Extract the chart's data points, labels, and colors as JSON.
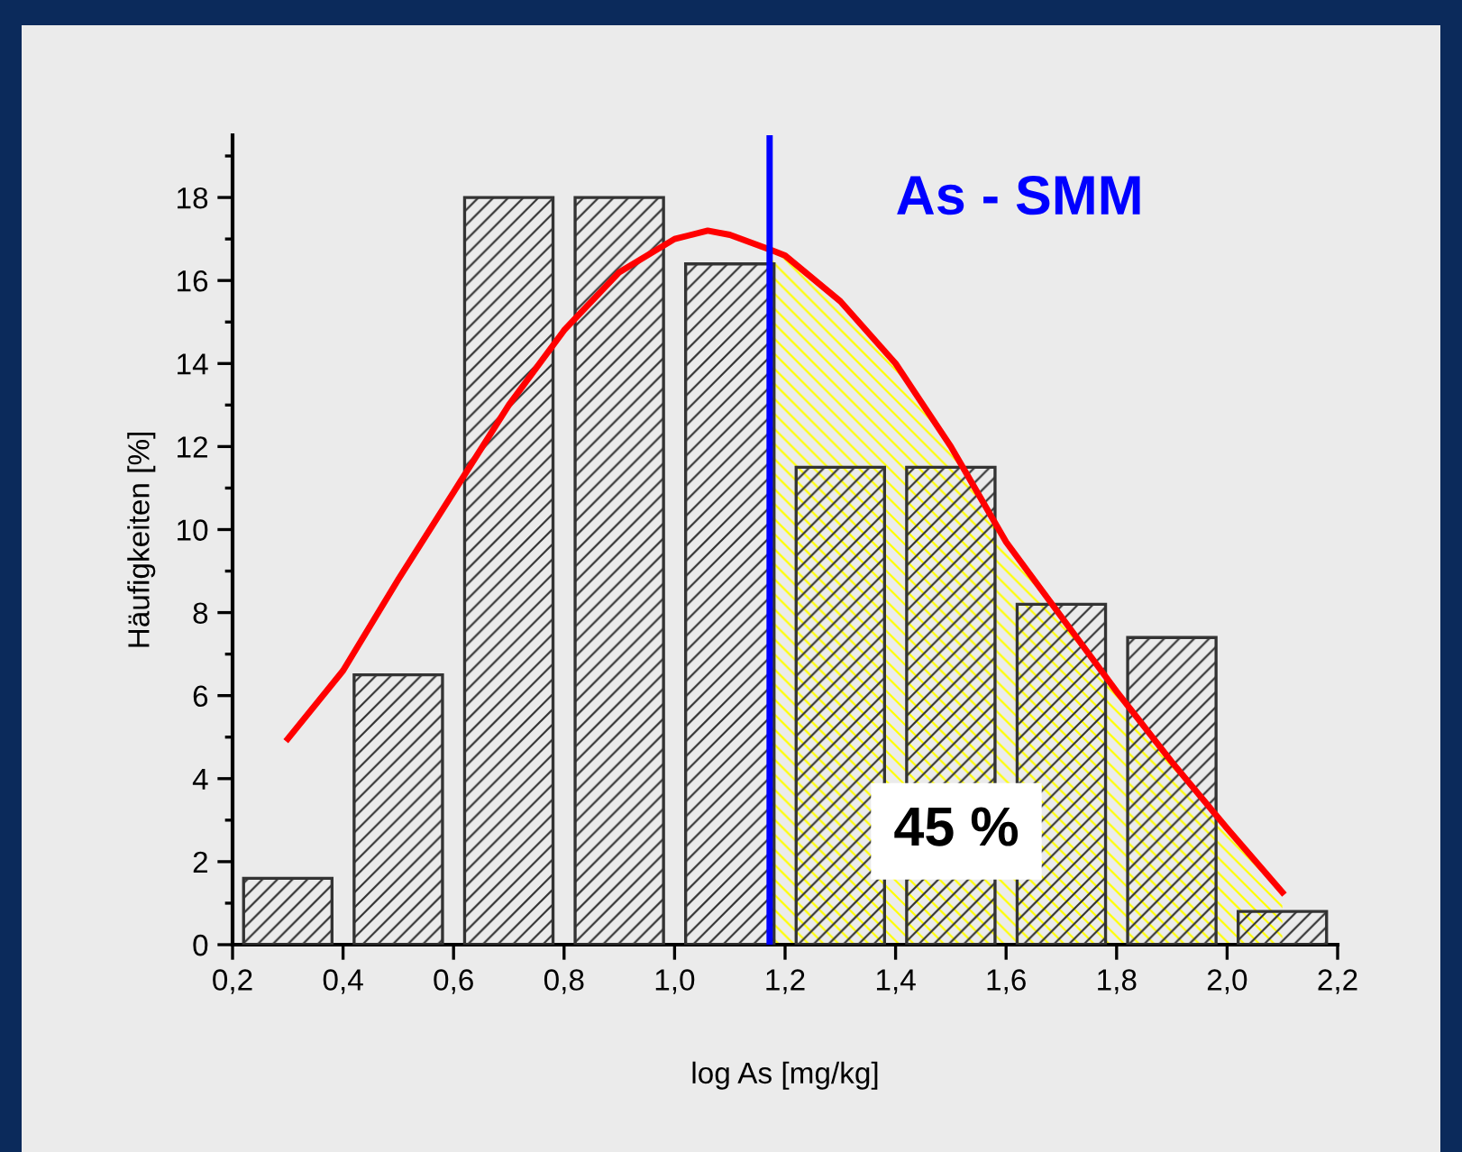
{
  "chart_data": {
    "type": "bar",
    "xlabel": "log As [mg/kg]",
    "ylabel": "Häufigkeiten [%]",
    "xlim": [
      0.2,
      2.2
    ],
    "ylim": [
      0,
      19.5
    ],
    "xticks": [
      {
        "value": 0.2,
        "label": "0,2"
      },
      {
        "value": 0.4,
        "label": "0,4"
      },
      {
        "value": 0.6,
        "label": "0,6"
      },
      {
        "value": 0.8,
        "label": "0,8"
      },
      {
        "value": 1.0,
        "label": "1,0"
      },
      {
        "value": 1.2,
        "label": "1,2"
      },
      {
        "value": 1.4,
        "label": "1,4"
      },
      {
        "value": 1.6,
        "label": "1,6"
      },
      {
        "value": 1.8,
        "label": "1,8"
      },
      {
        "value": 2.0,
        "label": "2,0"
      },
      {
        "value": 2.2,
        "label": "2,2"
      }
    ],
    "yticks": [
      0,
      2,
      4,
      6,
      8,
      10,
      12,
      14,
      16,
      18
    ],
    "series": [
      {
        "type": "area",
        "color": "#ffff00",
        "x": [
          1.172,
          1.2,
          1.3,
          1.4,
          1.5,
          1.6,
          1.8,
          2.0,
          2.1
        ],
        "values": [
          16.75,
          16.6,
          15.5,
          14.0,
          12.0,
          9.7,
          6.1,
          2.8,
          1.26
        ]
      },
      {
        "color": "#333333",
        "x": [
          0.3,
          0.5,
          0.7,
          0.9,
          1.1,
          1.3,
          1.5,
          1.7,
          1.9,
          2.1
        ],
        "values": [
          1.6,
          6.5,
          18,
          18,
          16.4,
          11.5,
          11.5,
          8.2,
          7.4,
          0.8
        ]
      },
      {
        "type": "line",
        "color": "#ff0000",
        "x": [
          0.3,
          0.4,
          0.5,
          0.6,
          0.7,
          0.8,
          0.9,
          1.0,
          1.06,
          1.1,
          1.172,
          1.2,
          1.3,
          1.4,
          1.5,
          1.6,
          1.7,
          1.8,
          1.9,
          2.0,
          2.1
        ],
        "values": [
          4.96,
          6.6,
          8.8,
          10.9,
          13.0,
          14.8,
          16.2,
          17.0,
          17.2,
          17.1,
          16.75,
          16.6,
          15.5,
          14.0,
          12.0,
          9.7,
          7.9,
          6.1,
          4.4,
          2.8,
          1.26
        ]
      }
    ],
    "ref_lines": [
      {
        "axis": "x",
        "value": 1.172,
        "color": "#0000ff"
      }
    ],
    "annotations": [
      {
        "text": "As - SMM"
      },
      {
        "text": "45 %"
      }
    ],
    "grid": false,
    "legend": false
  }
}
